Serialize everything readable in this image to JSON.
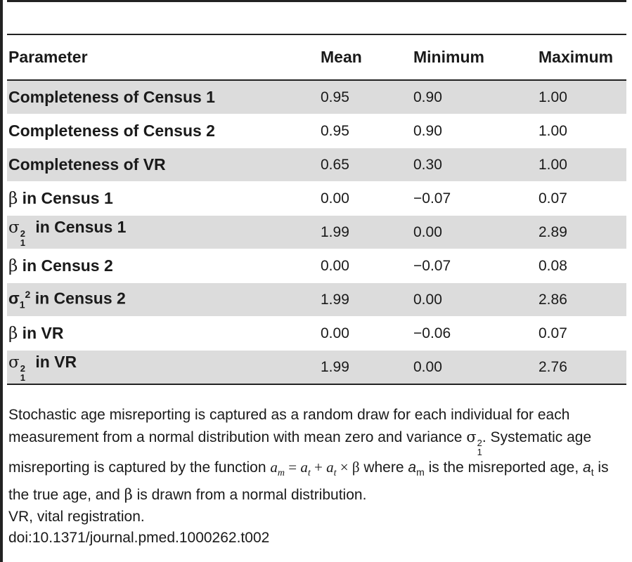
{
  "table": {
    "headers": {
      "parameter": "Parameter",
      "mean": "Mean",
      "minimum": "Minimum",
      "maximum": "Maximum"
    },
    "rows": [
      {
        "parameter": "Completeness of Census 1",
        "mean": "0.95",
        "minimum": "0.90",
        "maximum": "1.00"
      },
      {
        "parameter": "Completeness of Census 2",
        "mean": "0.95",
        "minimum": "0.90",
        "maximum": "1.00"
      },
      {
        "parameter": "Completeness of VR",
        "mean": "0.65",
        "minimum": "0.30",
        "maximum": "1.00"
      },
      {
        "symbol": "β",
        "parameter": " in Census 1",
        "mean": "0.00",
        "minimum": "−0.07",
        "maximum": "0.07"
      },
      {
        "symbol": "σ",
        "sup": "2",
        "sub": "1",
        "parameter": " in Census 1",
        "mean": "1.99",
        "minimum": "0.00",
        "maximum": "2.89"
      },
      {
        "symbol": "β",
        "parameter": " in Census 2",
        "mean": "0.00",
        "minimum": "−0.07",
        "maximum": "0.08"
      },
      {
        "symbol": "σ",
        "sub": "1",
        "sup": "2",
        "parameter": " in Census 2",
        "mean": "1.99",
        "minimum": "0.00",
        "maximum": "2.86"
      },
      {
        "symbol": "β",
        "parameter": " in VR",
        "mean": "0.00",
        "minimum": "−0.06",
        "maximum": "0.07"
      },
      {
        "symbol": "σ",
        "sup": "2",
        "sub": "1",
        "parameter": " in VR",
        "mean": "1.99",
        "minimum": "0.00",
        "maximum": "2.76"
      }
    ]
  },
  "footnote": {
    "part1": "Stochastic age misreporting is captured as a random draw for each individual for each measurement from a normal distribution with mean zero and variance ",
    "sigma": "σ",
    "sigma_sup": "2",
    "sigma_sub": "1",
    "part2": ". Systematic age misreporting is captured by the function ",
    "formula": {
      "a": "a",
      "sub_m": "m",
      "eq": " = ",
      "sub_t": "t",
      "plus": " + ",
      "times": " × ",
      "beta": "β"
    },
    "part3": " where ",
    "am_a": "a",
    "am_sub": "m",
    "part4": " is the misreported age, ",
    "at_a": "a",
    "at_sub": "t",
    "part5": " is the true age, and ",
    "beta": "β",
    "part6": " is drawn from a normal distribution.",
    "abbrev": "VR, vital registration.",
    "doi": "doi:10.1371/journal.pmed.1000262.t002"
  }
}
